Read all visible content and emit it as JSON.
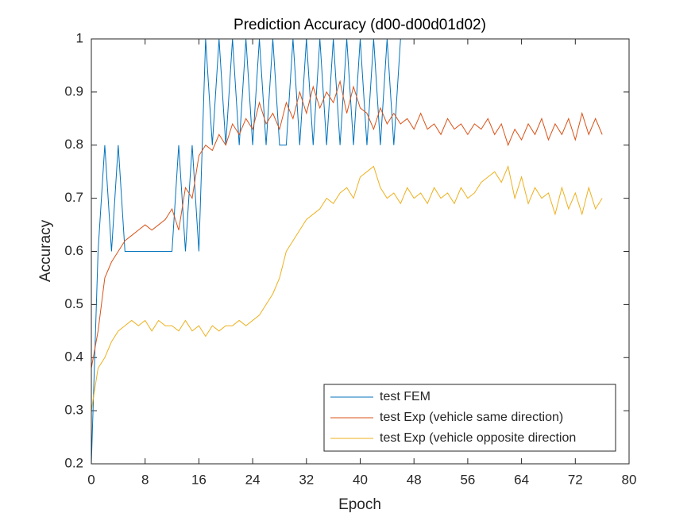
{
  "chart_data": {
    "type": "line",
    "title": "Prediction Accuracy (d00-d00d01d02)",
    "x_label": "Epoch",
    "y_label": "Accuracy",
    "x": [
      0,
      1,
      2,
      3,
      4,
      5,
      6,
      7,
      8,
      9,
      10,
      11,
      12,
      13,
      14,
      15,
      16,
      17,
      18,
      19,
      20,
      21,
      22,
      23,
      24,
      25,
      26,
      27,
      28,
      29,
      30,
      31,
      32,
      33,
      34,
      35,
      36,
      37,
      38,
      39,
      40,
      41,
      42,
      43,
      44,
      45,
      46,
      47,
      48,
      49,
      50,
      51,
      52,
      53,
      54,
      55,
      56,
      57,
      58,
      59,
      60,
      61,
      62,
      63,
      64,
      65,
      66,
      67,
      68,
      69,
      70,
      71,
      72,
      73,
      74,
      75,
      76
    ],
    "series": [
      {
        "name": "test FEM",
        "color": "#0072BD",
        "values": [
          0.2,
          0.6,
          0.8,
          0.6,
          0.8,
          0.6,
          0.6,
          0.6,
          0.6,
          0.6,
          0.6,
          0.6,
          0.6,
          0.8,
          0.6,
          0.8,
          0.6,
          1,
          0.8,
          1,
          0.8,
          1,
          0.8,
          1,
          0.8,
          1,
          0.8,
          1,
          0.8,
          0.8,
          1,
          0.8,
          1,
          0.8,
          1,
          0.8,
          1,
          0.8,
          1,
          0.8,
          1,
          0.8,
          1,
          0.8,
          1,
          0.8,
          1,
          1,
          1,
          1,
          1,
          1,
          1,
          1,
          1,
          1,
          1,
          1,
          1,
          1,
          1,
          1,
          1,
          1,
          1,
          1,
          1,
          1,
          1,
          1,
          1,
          1,
          1,
          1,
          1,
          1,
          1
        ]
      },
      {
        "name": "test Exp (vehicle same direction)",
        "color": "#D95319",
        "values": [
          0.38,
          0.45,
          0.55,
          0.58,
          0.6,
          0.62,
          0.63,
          0.64,
          0.65,
          0.64,
          0.65,
          0.66,
          0.68,
          0.64,
          0.72,
          0.7,
          0.78,
          0.8,
          0.79,
          0.82,
          0.8,
          0.84,
          0.82,
          0.85,
          0.83,
          0.88,
          0.84,
          0.86,
          0.83,
          0.88,
          0.85,
          0.9,
          0.86,
          0.91,
          0.87,
          0.9,
          0.88,
          0.92,
          0.86,
          0.91,
          0.87,
          0.86,
          0.83,
          0.87,
          0.84,
          0.86,
          0.84,
          0.85,
          0.83,
          0.86,
          0.83,
          0.84,
          0.82,
          0.85,
          0.83,
          0.84,
          0.82,
          0.84,
          0.83,
          0.85,
          0.82,
          0.84,
          0.8,
          0.83,
          0.81,
          0.84,
          0.82,
          0.85,
          0.81,
          0.84,
          0.82,
          0.85,
          0.81,
          0.86,
          0.82,
          0.85,
          0.82
        ]
      },
      {
        "name": "test Exp (vehicle opposite direction",
        "color": "#EDB120",
        "values": [
          0.3,
          0.38,
          0.4,
          0.43,
          0.45,
          0.46,
          0.47,
          0.46,
          0.47,
          0.45,
          0.47,
          0.46,
          0.46,
          0.45,
          0.47,
          0.45,
          0.46,
          0.44,
          0.46,
          0.45,
          0.46,
          0.46,
          0.47,
          0.46,
          0.47,
          0.48,
          0.5,
          0.52,
          0.55,
          0.6,
          0.62,
          0.64,
          0.66,
          0.67,
          0.68,
          0.7,
          0.69,
          0.71,
          0.72,
          0.7,
          0.74,
          0.75,
          0.76,
          0.72,
          0.7,
          0.71,
          0.69,
          0.72,
          0.7,
          0.71,
          0.69,
          0.72,
          0.7,
          0.71,
          0.69,
          0.72,
          0.7,
          0.71,
          0.73,
          0.74,
          0.75,
          0.73,
          0.76,
          0.7,
          0.74,
          0.69,
          0.72,
          0.7,
          0.71,
          0.67,
          0.72,
          0.68,
          0.71,
          0.67,
          0.72,
          0.68,
          0.7
        ]
      }
    ],
    "xlim": [
      0,
      80
    ],
    "ylim": [
      0.2,
      1
    ],
    "xticks": [
      0,
      8,
      16,
      24,
      32,
      40,
      48,
      56,
      64,
      72,
      80
    ],
    "yticks": [
      0.2,
      0.3,
      0.4,
      0.5,
      0.6,
      0.7,
      0.8,
      0.9,
      1
    ],
    "legend": "lower right"
  }
}
